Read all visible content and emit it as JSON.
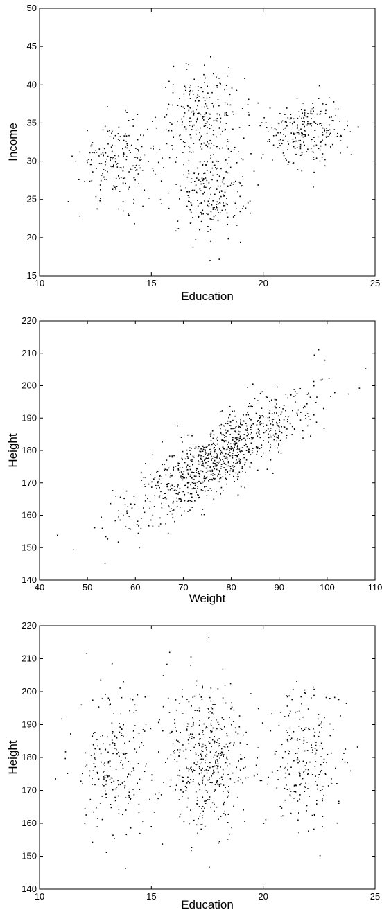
{
  "chart_data": [
    {
      "type": "scatter",
      "title": "",
      "xlabel": "Education",
      "ylabel": "Income",
      "xlim": [
        10,
        25
      ],
      "ylim": [
        15,
        50
      ],
      "xticks": [
        "10",
        "15",
        "20",
        "25"
      ],
      "yticks": [
        "15",
        "20",
        "25",
        "30",
        "35",
        "40",
        "45",
        "50"
      ],
      "clusters": [
        {
          "cx": 13.5,
          "cy": 30.0,
          "sx": 0.85,
          "sy": 2.6,
          "n": 200
        },
        {
          "cx": 17.3,
          "cy": 36.0,
          "sx": 0.95,
          "sy": 3.0,
          "n": 230
        },
        {
          "cx": 17.6,
          "cy": 26.0,
          "sx": 0.85,
          "sy": 3.0,
          "n": 230
        },
        {
          "cx": 22.0,
          "cy": 34.0,
          "sx": 0.9,
          "sy": 2.2,
          "n": 240
        }
      ]
    },
    {
      "type": "scatter",
      "title": "",
      "xlabel": "Weight",
      "ylabel": "Height",
      "xlim": [
        40,
        110
      ],
      "ylim": [
        140,
        220
      ],
      "xticks": [
        "40",
        "50",
        "60",
        "70",
        "80",
        "90",
        "100",
        "110"
      ],
      "yticks": [
        "140",
        "150",
        "160",
        "170",
        "180",
        "190",
        "200",
        "210",
        "220"
      ],
      "trend": {
        "slope": 0.88,
        "intercept": 110
      },
      "x_mean": 78,
      "x_sd": 9.5,
      "y_residual_sd": 5.5,
      "n": 900
    },
    {
      "type": "scatter",
      "title": "",
      "xlabel": "Education",
      "ylabel": "Height",
      "xlim": [
        10,
        25
      ],
      "ylim": [
        140,
        220
      ],
      "xticks": [
        "10",
        "15",
        "20",
        "25"
      ],
      "yticks": [
        "140",
        "150",
        "160",
        "170",
        "180",
        "190",
        "200",
        "210",
        "220"
      ],
      "clusters": [
        {
          "cx": 13.4,
          "cy": 178,
          "sx": 0.9,
          "sy": 11,
          "n": 220
        },
        {
          "cx": 17.4,
          "cy": 179,
          "sx": 0.95,
          "sy": 11,
          "n": 450
        },
        {
          "cx": 21.9,
          "cy": 180,
          "sx": 0.9,
          "sy": 10,
          "n": 230
        }
      ]
    }
  ]
}
